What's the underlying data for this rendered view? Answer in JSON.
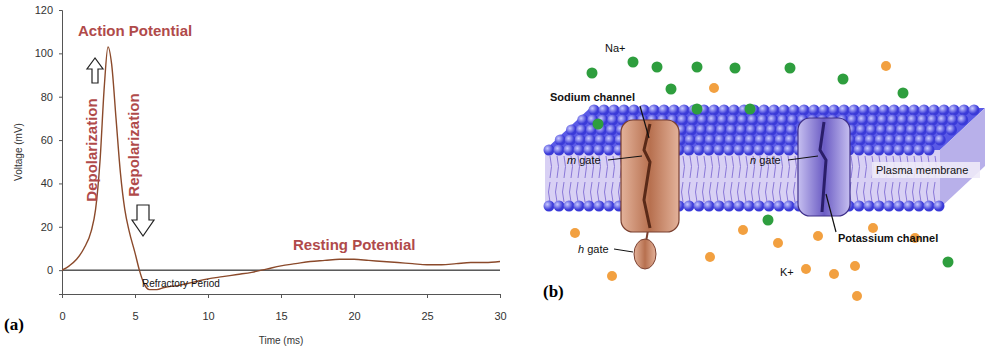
{
  "chart_data": {
    "type": "line",
    "panel_label": "(a)",
    "x_label": "Time (ms)",
    "y_label": "Voltage (mV)",
    "annotations": [
      "Action Potential",
      "Depolarization",
      "Repolarization",
      "Resting Potential",
      "Refractory Period"
    ],
    "x": [
      0,
      0.5,
      1,
      1.5,
      2,
      2.3,
      2.6,
      2.9,
      3.15,
      3.4,
      3.7,
      4,
      4.3,
      4.6,
      5,
      5.3,
      5.6,
      6,
      6.5,
      7,
      8,
      9,
      10,
      11,
      12,
      13,
      14,
      15,
      16,
      17,
      18,
      19,
      20,
      21,
      22,
      23,
      24,
      25,
      26,
      27,
      28,
      29,
      30
    ],
    "values": [
      0,
      2,
      5,
      10,
      18,
      28,
      50,
      85,
      103,
      95,
      70,
      45,
      28,
      18,
      8,
      0,
      -6,
      -9,
      -9,
      -8,
      -7,
      -5.5,
      -4,
      -3,
      -2,
      -1,
      0.5,
      2,
      3,
      4,
      4.5,
      5,
      5,
      4.5,
      4,
      3.5,
      3,
      2.5,
      2.5,
      3,
      3.5,
      3.5,
      4
    ],
    "color": "#8b4a2b",
    "xlim": [
      0,
      30
    ],
    "xticks": [
      0,
      5,
      10,
      15,
      20,
      25,
      30
    ],
    "ylim": [
      -11,
      120
    ],
    "yticks": [
      0,
      20,
      40,
      60,
      80,
      100,
      120
    ],
    "grid": false
  },
  "diagram": {
    "panel_label": "(b)",
    "ions": {
      "sodium": "Na+",
      "potassium": "K+"
    },
    "membrane": "Plasma membrane",
    "channels": [
      {
        "label": "Sodium channel",
        "gate": "m gate",
        "second_gate": "h gate"
      },
      {
        "label": "Potassium channel",
        "gate": "n gate"
      }
    ]
  }
}
